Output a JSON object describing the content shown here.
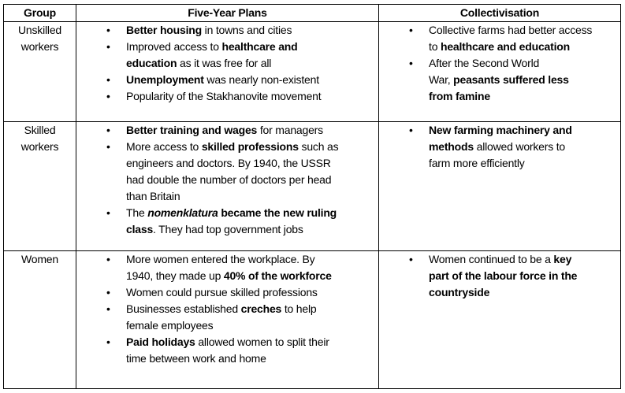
{
  "headers": [
    "Group",
    "Five-Year Plans",
    "Collectivisation"
  ],
  "rows": [
    {
      "group": [
        "Unskilled",
        "workers"
      ],
      "five_year_plans": [
        [
          [
            [
              "Better housing",
              "b"
            ],
            [
              " in towns and cities",
              ""
            ]
          ]
        ],
        [
          [
            [
              "Improved access to ",
              ""
            ],
            [
              "healthcare and",
              "b"
            ]
          ],
          [
            [
              "education",
              "b"
            ],
            [
              " as it was free for all",
              ""
            ]
          ]
        ],
        [
          [
            [
              "Unemployment",
              "b"
            ],
            [
              " was nearly non-existent",
              ""
            ]
          ]
        ],
        [
          [
            [
              "Popularity of the Stakhanovite movement",
              ""
            ]
          ]
        ]
      ],
      "collectivisation": [
        [
          [
            [
              "Collective farms had better access",
              ""
            ]
          ],
          [
            [
              "to ",
              ""
            ],
            [
              "healthcare and education",
              "b"
            ]
          ]
        ],
        [
          [
            [
              "After the Second World",
              ""
            ]
          ],
          [
            [
              "War, ",
              ""
            ],
            [
              "peasants suffered less",
              "b"
            ]
          ],
          [
            [
              "from famine",
              "b"
            ]
          ]
        ]
      ]
    },
    {
      "group": [
        "Skilled",
        "workers"
      ],
      "five_year_plans": [
        [
          [
            [
              "Better training and wages",
              "b"
            ],
            [
              " for managers",
              ""
            ]
          ]
        ],
        [
          [
            [
              "More access to ",
              ""
            ],
            [
              "skilled professions",
              "b"
            ],
            [
              " such as",
              ""
            ]
          ],
          [
            [
              "engineers and doctors. By 1940, the USSR",
              ""
            ]
          ],
          [
            [
              "had double the number of doctors per head",
              ""
            ]
          ],
          [
            [
              "than Britain",
              ""
            ]
          ]
        ],
        [
          [
            [
              "The ",
              ""
            ],
            [
              "nomenklatura",
              "bi"
            ],
            [
              " became the new ruling",
              "b"
            ]
          ],
          [
            [
              "class",
              "b"
            ],
            [
              ". They had top government jobs",
              ""
            ]
          ]
        ]
      ],
      "collectivisation": [
        [
          [
            [
              "New farming machinery and",
              "b"
            ]
          ],
          [
            [
              "methods",
              "b"
            ],
            [
              " allowed workers to",
              ""
            ]
          ],
          [
            [
              "farm more efficiently",
              ""
            ]
          ]
        ]
      ]
    },
    {
      "group": [
        "Women"
      ],
      "five_year_plans": [
        [
          [
            [
              "More women entered the workplace. By",
              ""
            ]
          ],
          [
            [
              "1940, they made up ",
              ""
            ],
            [
              "40% of the workforce",
              "b"
            ]
          ]
        ],
        [
          [
            [
              "Women could pursue skilled professions",
              ""
            ]
          ]
        ],
        [
          [
            [
              "Businesses established ",
              ""
            ],
            [
              "creches",
              "b"
            ],
            [
              " to help",
              ""
            ]
          ],
          [
            [
              "female employees",
              ""
            ]
          ]
        ],
        [
          [
            [
              "Paid holidays",
              "b"
            ],
            [
              " allowed women to split their",
              ""
            ]
          ],
          [
            [
              "time between work and home",
              ""
            ]
          ]
        ]
      ],
      "collectivisation": [
        [
          [
            [
              "Women continued to be a ",
              ""
            ],
            [
              "key",
              "b"
            ]
          ],
          [
            [
              "part of the labour force in the",
              "b"
            ]
          ],
          [
            [
              "countryside",
              "b"
            ]
          ]
        ]
      ]
    }
  ],
  "bullet_glyph": "•"
}
